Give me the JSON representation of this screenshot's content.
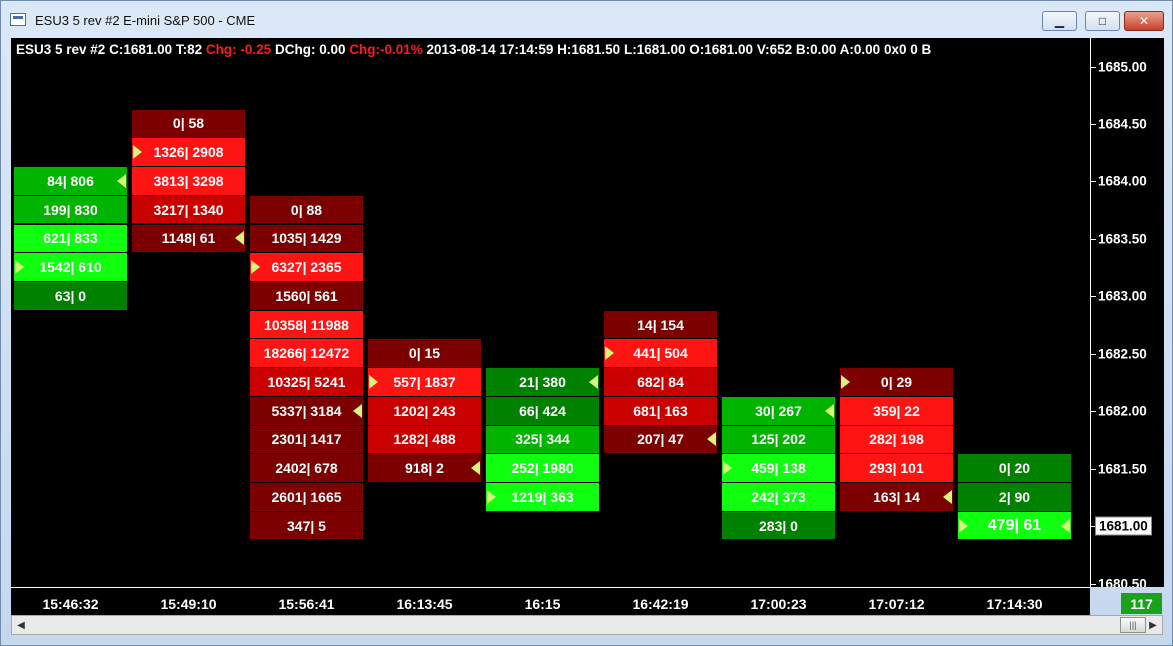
{
  "window": {
    "title": "ESU3  5 rev  #2  E-mini S&P 500 - CME",
    "minimize_glyph": "▁",
    "maximize_glyph": "□",
    "close_glyph": "✕"
  },
  "header": {
    "symbol": "ESU3  5 rev  #2",
    "close": "C:1681.00",
    "ticks": "T:82",
    "chg": "Chg: -0.25",
    "dchg": "DChg: 0.00",
    "chg_pct": "Chg:-0.01%",
    "datetime": "2013-08-14 17:14:59",
    "high": "H:1681.50",
    "low": "L:1681.00",
    "open": "O:1681.00",
    "volume": "V:652",
    "bid": "B:0.00",
    "ask": "A:0.00",
    "tail": "0x0 0 B"
  },
  "colors": {
    "red_dark": "#7d0000",
    "red_mid": "#c80000",
    "red_bright": "#ff1414",
    "green_dark": "#008200",
    "green_mid": "#00b400",
    "green_bright": "#10ff10",
    "marker": "#d7f57a"
  },
  "y_axis": {
    "labels": [
      "1685.00",
      "1684.50",
      "1684.00",
      "1683.50",
      "1683.00",
      "1682.50",
      "1682.00",
      "1681.50",
      "1681.00",
      "1680.50"
    ],
    "current_price": "1681.00"
  },
  "x_axis": {
    "labels": [
      "15:46:32",
      "15:49:10",
      "15:56:41",
      "16:13:45",
      "16:15",
      "16:42:19",
      "17:00:23",
      "17:07:12",
      "17:14:30"
    ]
  },
  "counter": "117",
  "chart_data": {
    "type": "table",
    "title": "ESU3  5 rev  #2  E-mini S&P 500 - CME",
    "tick_size": 0.25,
    "ylim": [
      1680.5,
      1685.0
    ],
    "bars": [
      {
        "time": "15:46:32",
        "direction": "up",
        "levels": [
          {
            "price": 1684.0,
            "bid": "84",
            "ask": "806",
            "shade": "mid",
            "marker": "left"
          },
          {
            "price": 1683.75,
            "bid": "199",
            "ask": "830",
            "shade": "mid"
          },
          {
            "price": 1683.5,
            "bid": "621",
            "ask": "833",
            "shade": "bright"
          },
          {
            "price": 1683.25,
            "bid": "1542",
            "ask": "610",
            "shade": "bright",
            "marker": "right"
          },
          {
            "price": 1683.0,
            "bid": "63",
            "ask": "0",
            "shade": "dark"
          }
        ]
      },
      {
        "time": "15:49:10",
        "direction": "down",
        "levels": [
          {
            "price": 1684.5,
            "bid": "0",
            "ask": "58",
            "shade": "dark"
          },
          {
            "price": 1684.25,
            "bid": "1326",
            "ask": "2908",
            "shade": "bright",
            "marker": "right"
          },
          {
            "price": 1684.0,
            "bid": "3813",
            "ask": "3298",
            "shade": "bright"
          },
          {
            "price": 1683.75,
            "bid": "3217",
            "ask": "1340",
            "shade": "mid"
          },
          {
            "price": 1683.5,
            "bid": "1148",
            "ask": "61",
            "shade": "dark",
            "marker": "left"
          }
        ]
      },
      {
        "time": "15:56:41",
        "direction": "down",
        "levels": [
          {
            "price": 1683.75,
            "bid": "0",
            "ask": "88",
            "shade": "dark"
          },
          {
            "price": 1683.5,
            "bid": "1035",
            "ask": "1429",
            "shade": "dark"
          },
          {
            "price": 1683.25,
            "bid": "6327",
            "ask": "2365",
            "shade": "bright",
            "marker": "right"
          },
          {
            "price": 1683.0,
            "bid": "1560",
            "ask": "561",
            "shade": "dark"
          },
          {
            "price": 1682.75,
            "bid": "10358",
            "ask": "11988",
            "shade": "bright"
          },
          {
            "price": 1682.5,
            "bid": "18266",
            "ask": "12472",
            "shade": "bright"
          },
          {
            "price": 1682.25,
            "bid": "10325",
            "ask": "5241",
            "shade": "mid"
          },
          {
            "price": 1682.0,
            "bid": "5337",
            "ask": "3184",
            "shade": "dark",
            "marker": "left"
          },
          {
            "price": 1681.75,
            "bid": "2301",
            "ask": "1417",
            "shade": "dark"
          },
          {
            "price": 1681.5,
            "bid": "2402",
            "ask": "678",
            "shade": "dark"
          },
          {
            "price": 1681.25,
            "bid": "2601",
            "ask": "1665",
            "shade": "dark"
          },
          {
            "price": 1681.0,
            "bid": "347",
            "ask": "5",
            "shade": "dark"
          }
        ]
      },
      {
        "time": "16:13:45",
        "direction": "down",
        "levels": [
          {
            "price": 1682.5,
            "bid": "0",
            "ask": "15",
            "shade": "dark"
          },
          {
            "price": 1682.25,
            "bid": "557",
            "ask": "1837",
            "shade": "bright",
            "marker": "right"
          },
          {
            "price": 1682.0,
            "bid": "1202",
            "ask": "243",
            "shade": "mid"
          },
          {
            "price": 1681.75,
            "bid": "1282",
            "ask": "488",
            "shade": "mid"
          },
          {
            "price": 1681.5,
            "bid": "918",
            "ask": "2",
            "shade": "dark",
            "marker": "left"
          }
        ]
      },
      {
        "time": "16:15",
        "direction": "up",
        "levels": [
          {
            "price": 1682.25,
            "bid": "21",
            "ask": "380",
            "shade": "dark",
            "marker": "left"
          },
          {
            "price": 1682.0,
            "bid": "66",
            "ask": "424",
            "shade": "dark"
          },
          {
            "price": 1681.75,
            "bid": "325",
            "ask": "344",
            "shade": "mid"
          },
          {
            "price": 1681.5,
            "bid": "252",
            "ask": "1980",
            "shade": "bright"
          },
          {
            "price": 1681.25,
            "bid": "1219",
            "ask": "363",
            "shade": "bright",
            "marker": "right"
          }
        ]
      },
      {
        "time": "16:42:19",
        "direction": "down",
        "levels": [
          {
            "price": 1682.75,
            "bid": "14",
            "ask": "154",
            "shade": "dark"
          },
          {
            "price": 1682.5,
            "bid": "441",
            "ask": "504",
            "shade": "bright",
            "marker": "right"
          },
          {
            "price": 1682.25,
            "bid": "682",
            "ask": "84",
            "shade": "mid"
          },
          {
            "price": 1682.0,
            "bid": "681",
            "ask": "163",
            "shade": "mid"
          },
          {
            "price": 1681.75,
            "bid": "207",
            "ask": "47",
            "shade": "dark",
            "marker": "left"
          }
        ]
      },
      {
        "time": "17:00:23",
        "direction": "up",
        "levels": [
          {
            "price": 1682.0,
            "bid": "30",
            "ask": "267",
            "shade": "mid",
            "marker": "left"
          },
          {
            "price": 1681.75,
            "bid": "125",
            "ask": "202",
            "shade": "mid"
          },
          {
            "price": 1681.5,
            "bid": "459",
            "ask": "138",
            "shade": "bright",
            "marker": "right"
          },
          {
            "price": 1681.25,
            "bid": "242",
            "ask": "373",
            "shade": "bright"
          },
          {
            "price": 1681.0,
            "bid": "283",
            "ask": "0",
            "shade": "dark"
          }
        ]
      },
      {
        "time": "17:07:12",
        "direction": "down",
        "levels": [
          {
            "price": 1682.25,
            "bid": "0",
            "ask": "29",
            "shade": "dark",
            "marker": "right"
          },
          {
            "price": 1682.0,
            "bid": "359",
            "ask": "22",
            "shade": "bright"
          },
          {
            "price": 1681.75,
            "bid": "282",
            "ask": "198",
            "shade": "bright"
          },
          {
            "price": 1681.5,
            "bid": "293",
            "ask": "101",
            "shade": "bright"
          },
          {
            "price": 1681.25,
            "bid": "163",
            "ask": "14",
            "shade": "dark",
            "marker": "left"
          }
        ]
      },
      {
        "time": "17:14:30",
        "direction": "up",
        "levels": [
          {
            "price": 1681.5,
            "bid": "0",
            "ask": "20",
            "shade": "dark"
          },
          {
            "price": 1681.25,
            "bid": "2",
            "ask": "90",
            "shade": "dark"
          },
          {
            "price": 1681.0,
            "bid": "479",
            "ask": "61",
            "shade": "bright",
            "marker": "both",
            "emphasis": true
          }
        ]
      }
    ]
  }
}
